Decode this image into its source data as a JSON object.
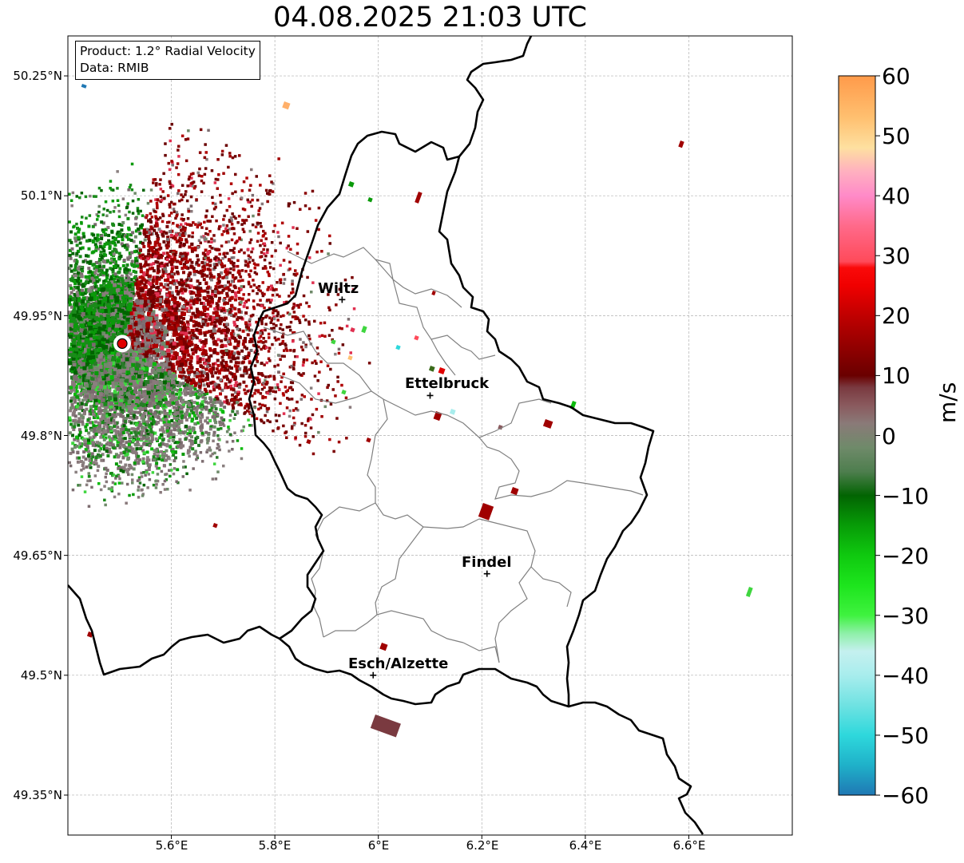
{
  "title": "04.08.2025 21:03 UTC",
  "info": {
    "product": "Product: 1.2° Radial Velocity",
    "data": "Data: RMIB"
  },
  "axes": {
    "lon_range": [
      5.4,
      6.8
    ],
    "lat_range": [
      49.3,
      50.3
    ],
    "lat_ticks": [
      "50.25°N",
      "50.1°N",
      "49.95°N",
      "49.8°N",
      "49.65°N",
      "49.5°N",
      "49.35°N"
    ],
    "lon_ticks": [
      "5.6°E",
      "5.8°E",
      "6°E",
      "6.2°E",
      "6.4°E",
      "6.6°E"
    ],
    "grid": true
  },
  "places": [
    {
      "name": "Wiltz",
      "lon": 5.93,
      "lat": 49.97
    },
    {
      "name": "Ettelbruck",
      "lon": 6.1,
      "lat": 49.85
    },
    {
      "name": "Findel",
      "lon": 6.21,
      "lat": 49.627
    },
    {
      "name": "Esch/Alzette",
      "lon": 5.99,
      "lat": 49.5
    }
  ],
  "radar_site": {
    "lon": 5.505,
    "lat": 49.915
  },
  "colorbar": {
    "label": "m/s",
    "min": -60,
    "max": 60,
    "ticks": [
      "60",
      "50",
      "40",
      "30",
      "20",
      "10",
      "0",
      "−10",
      "−20",
      "−30",
      "−40",
      "−50",
      "−60"
    ],
    "stops": [
      {
        "v": -60,
        "c": "#1f78b4"
      },
      {
        "v": -55,
        "c": "#1fb1c9"
      },
      {
        "v": -50,
        "c": "#2ed8dc"
      },
      {
        "v": -45,
        "c": "#6fe2e2"
      },
      {
        "v": -40,
        "c": "#a8eded"
      },
      {
        "v": -36,
        "c": "#c5f0ef"
      },
      {
        "v": -33,
        "c": "#8ef0a8"
      },
      {
        "v": -30,
        "c": "#3ff23f"
      },
      {
        "v": -25,
        "c": "#1de51d"
      },
      {
        "v": -20,
        "c": "#0fc90f"
      },
      {
        "v": -15,
        "c": "#079c07"
      },
      {
        "v": -10,
        "c": "#026402"
      },
      {
        "v": -6,
        "c": "#4e7e4e"
      },
      {
        "v": -2,
        "c": "#6f8a6a"
      },
      {
        "v": 2,
        "c": "#8a7a78"
      },
      {
        "v": 5,
        "c": "#8a5a5e"
      },
      {
        "v": 8,
        "c": "#7a3a40"
      },
      {
        "v": 10,
        "c": "#6a0000"
      },
      {
        "v": 15,
        "c": "#940000"
      },
      {
        "v": 20,
        "c": "#c00000"
      },
      {
        "v": 25,
        "c": "#f00000"
      },
      {
        "v": 28,
        "c": "#fa0a0a"
      },
      {
        "v": 29,
        "c": "#ff4a5a"
      },
      {
        "v": 35,
        "c": "#ff6a8a"
      },
      {
        "v": 40,
        "c": "#ff8ac8"
      },
      {
        "v": 44,
        "c": "#ffb0c0"
      },
      {
        "v": 48,
        "c": "#fee0a0"
      },
      {
        "v": 53,
        "c": "#ffc070"
      },
      {
        "v": 60,
        "c": "#ff9a4a"
      }
    ]
  },
  "colors": {
    "outbound_dark": "#7a0000",
    "outbound": "#a00000",
    "zero": "#87787a",
    "inbound": "#0a9a0a",
    "inbound_dark": "#006400",
    "border": "#000000",
    "district_border": "#808080",
    "grid": "#b0b0b0"
  }
}
